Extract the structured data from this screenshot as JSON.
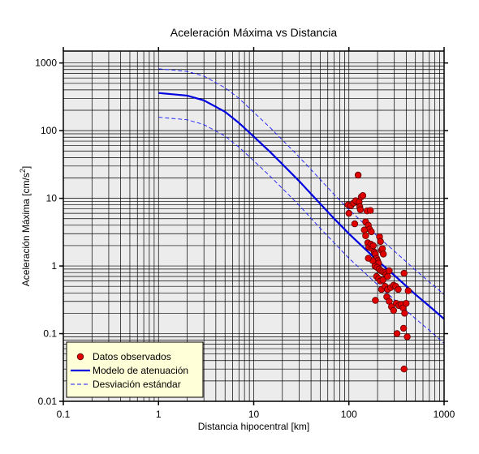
{
  "chart_data": {
    "type": "scatter",
    "title": "Aceleración Máxima vs Distancia",
    "xlabel": "Distancia hipocentral [km]",
    "ylabel_main": "Aceleración Máxima [cm/s",
    "ylabel_sup": "2",
    "ylabel_end": "]",
    "xscale": "log",
    "yscale": "log",
    "xlim": [
      0.1,
      1000
    ],
    "ylim": [
      0.01,
      1500
    ],
    "grid": true,
    "legend_position": "bottom-left",
    "x_ticks": [
      {
        "value": 0.1,
        "label": "0.1"
      },
      {
        "value": 1,
        "label": "1"
      },
      {
        "value": 10,
        "label": "10"
      },
      {
        "value": 100,
        "label": "100"
      },
      {
        "value": 1000,
        "label": "1000"
      }
    ],
    "y_ticks": [
      {
        "value": 0.01,
        "label": "0.01"
      },
      {
        "value": 0.1,
        "label": "0.1"
      },
      {
        "value": 1,
        "label": "1"
      },
      {
        "value": 10,
        "label": "10"
      },
      {
        "value": 100,
        "label": "100"
      },
      {
        "value": 1000,
        "label": "1000"
      }
    ],
    "colors": {
      "plot_background": "#ececec",
      "grid": "#000000",
      "points_fill": "#e00000",
      "points_edge": "#5a0000",
      "model_line": "#0000e0",
      "deviation_line": "#1a1aff",
      "legend_background": "#ffffd8"
    },
    "series": [
      {
        "name": "Datos observados",
        "kind": "points",
        "points": [
          [
            125,
            22
          ],
          [
            98,
            8
          ],
          [
            105,
            7.8
          ],
          [
            112,
            8.5
          ],
          [
            120,
            9
          ],
          [
            118,
            9.2
          ],
          [
            128,
            8.8
          ],
          [
            135,
            10.5
          ],
          [
            130,
            7.5
          ],
          [
            140,
            11
          ],
          [
            100,
            6
          ],
          [
            115,
            4.2
          ],
          [
            132,
            6.8
          ],
          [
            155,
            6.5
          ],
          [
            168,
            6.6
          ],
          [
            150,
            4.5
          ],
          [
            160,
            4
          ],
          [
            165,
            3.5
          ],
          [
            172,
            3.2
          ],
          [
            145,
            3.4
          ],
          [
            150,
            2.8
          ],
          [
            158,
            2.2
          ],
          [
            162,
            1.9
          ],
          [
            170,
            2.1
          ],
          [
            175,
            1.8
          ],
          [
            180,
            2
          ],
          [
            185,
            1.6
          ],
          [
            190,
            1.5
          ],
          [
            195,
            1.3
          ],
          [
            200,
            1.2
          ],
          [
            205,
            1.1
          ],
          [
            210,
            2.7
          ],
          [
            215,
            2.3
          ],
          [
            220,
            1.7
          ],
          [
            225,
            1.8
          ],
          [
            230,
            1.5
          ],
          [
            178,
            1.2
          ],
          [
            188,
            1
          ],
          [
            198,
            0.95
          ],
          [
            208,
            0.9
          ],
          [
            218,
            0.85
          ],
          [
            228,
            0.82
          ],
          [
            238,
            0.8
          ],
          [
            160,
            1.3
          ],
          [
            195,
            0.7
          ],
          [
            205,
            0.65
          ],
          [
            215,
            0.6
          ],
          [
            228,
            0.62
          ],
          [
            245,
            0.75
          ],
          [
            255,
            0.7
          ],
          [
            265,
            0.85
          ],
          [
            220,
            0.45
          ],
          [
            240,
            0.5
          ],
          [
            255,
            0.45
          ],
          [
            275,
            0.48
          ],
          [
            295,
            0.52
          ],
          [
            310,
            0.5
          ],
          [
            330,
            0.45
          ],
          [
            380,
            0.78
          ],
          [
            420,
            0.43
          ],
          [
            190,
            0.31
          ],
          [
            250,
            0.35
          ],
          [
            265,
            0.3
          ],
          [
            280,
            0.25
          ],
          [
            295,
            0.22
          ],
          [
            315,
            0.28
          ],
          [
            335,
            0.26
          ],
          [
            355,
            0.27
          ],
          [
            370,
            0.24
          ],
          [
            385,
            0.2
          ],
          [
            400,
            0.28
          ],
          [
            320,
            0.1
          ],
          [
            375,
            0.12
          ],
          [
            410,
            0.09
          ],
          [
            380,
            0.03
          ]
        ]
      },
      {
        "name": "Modelo de atenuación",
        "kind": "line",
        "x": [
          1,
          2,
          3,
          5,
          7,
          10,
          15,
          20,
          30,
          50,
          70,
          100,
          150,
          200,
          300,
          500,
          700,
          1000
        ],
        "y": [
          360,
          330,
          280,
          190,
          130,
          82,
          48,
          32,
          18,
          8.3,
          5,
          3,
          1.75,
          1.2,
          0.73,
          0.38,
          0.255,
          0.165
        ]
      },
      {
        "name": "Desviación estándar",
        "kind": "dashed",
        "x": [
          1,
          2,
          3,
          5,
          7,
          10,
          15,
          20,
          30,
          50,
          70,
          100,
          150,
          200,
          300,
          500,
          700,
          1000
        ],
        "y": [
          820,
          750,
          640,
          430,
          300,
          187,
          110,
          73,
          41,
          19,
          11.4,
          6.8,
          4,
          2.74,
          1.66,
          0.87,
          0.58,
          0.38
        ]
      },
      {
        "kind": "dashed",
        "x": [
          1,
          2,
          3,
          5,
          7,
          10,
          15,
          20,
          30,
          50,
          70,
          100,
          150,
          200,
          300,
          500,
          700,
          1000
        ],
        "y": [
          158,
          145,
          123,
          83,
          57,
          36,
          21,
          14,
          7.9,
          3.6,
          2.2,
          1.3,
          0.77,
          0.53,
          0.32,
          0.167,
          0.112,
          0.072
        ]
      }
    ]
  }
}
